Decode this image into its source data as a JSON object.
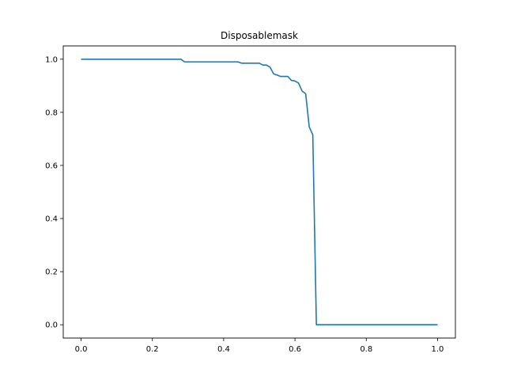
{
  "chart_data": {
    "type": "line",
    "title": "Disposablemask",
    "xlabel": "",
    "ylabel": "",
    "xlim": [
      -0.05,
      1.05
    ],
    "ylim": [
      -0.05,
      1.05
    ],
    "grid": false,
    "line_color": "#1f77b4",
    "x_ticks": [
      0.0,
      0.2,
      0.4,
      0.6,
      0.8,
      1.0
    ],
    "x_tick_labels": [
      "0.0",
      "0.2",
      "0.4",
      "0.6",
      "0.8",
      "1.0"
    ],
    "y_ticks": [
      0.0,
      0.2,
      0.4,
      0.6,
      0.8,
      1.0
    ],
    "y_tick_labels": [
      "0.0",
      "0.2",
      "0.4",
      "0.6",
      "0.8",
      "1.0"
    ],
    "series": [
      {
        "x": [
          0.0,
          0.28,
          0.29,
          0.44,
          0.45,
          0.5,
          0.51,
          0.52,
          0.53,
          0.54,
          0.55,
          0.56,
          0.57,
          0.58,
          0.59,
          0.6,
          0.61,
          0.62,
          0.63,
          0.64,
          0.65,
          0.66,
          0.67,
          0.7,
          0.8,
          0.9,
          1.0
        ],
        "y": [
          1.0,
          1.0,
          0.99,
          0.99,
          0.985,
          0.985,
          0.978,
          0.978,
          0.97,
          0.945,
          0.94,
          0.935,
          0.935,
          0.935,
          0.92,
          0.918,
          0.91,
          0.88,
          0.87,
          0.745,
          0.715,
          0.0,
          0.0,
          0.0,
          0.0,
          0.0,
          0.0
        ]
      }
    ]
  }
}
